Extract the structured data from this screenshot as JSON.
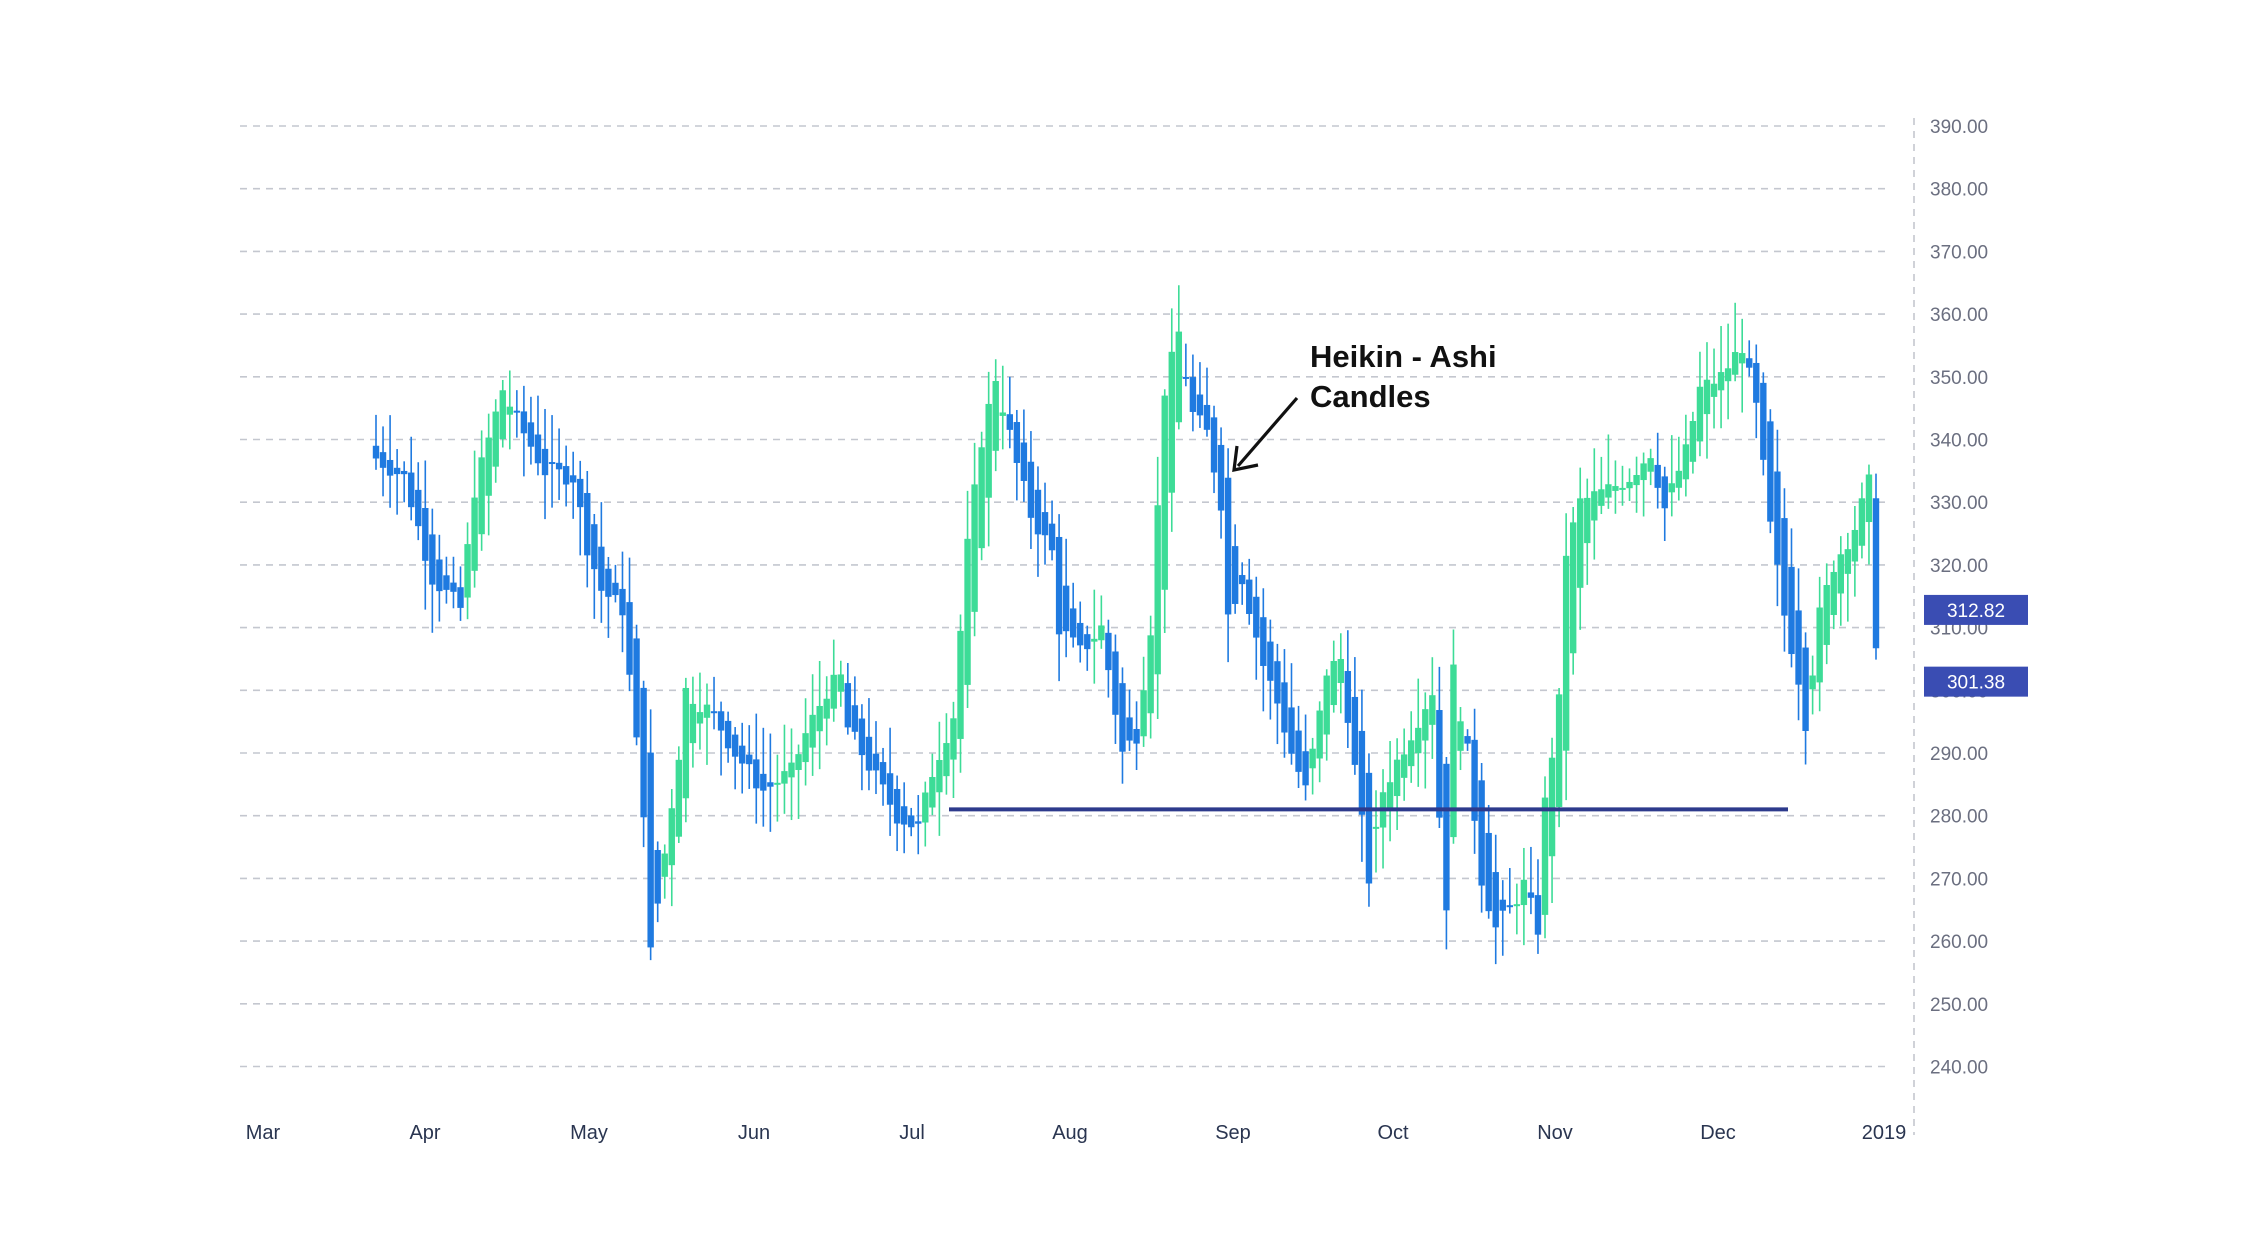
{
  "chart_data": {
    "type": "candlestick",
    "subtype": "heikin-ashi",
    "title": "",
    "xlabel": "",
    "ylabel": "",
    "ylim": [
      232,
      393
    ],
    "y_ticks": [
      "390.00",
      "380.00",
      "370.00",
      "360.00",
      "350.00",
      "340.00",
      "330.00",
      "320.00",
      "310.00",
      "300.00",
      "290.00",
      "280.00",
      "270.00",
      "260.00",
      "250.00",
      "240.00"
    ],
    "x_ticks": [
      "Mar",
      "Apr",
      "May",
      "Jun",
      "Jul",
      "Aug",
      "Sep",
      "Oct",
      "Nov",
      "Dec",
      "2019"
    ],
    "grid": true,
    "price_tags": [
      "312.82",
      "301.38"
    ],
    "support_level": 281,
    "annotation": {
      "line1": "Heikin - Ashi",
      "line2": "Candles"
    },
    "colors": {
      "up": "#3ddc97",
      "down": "#1f7ae0",
      "support": "#2d3a8c",
      "tag": "#3a4db3",
      "grid": "#c4c7cf"
    },
    "anchors": [
      [
        0,
        337
      ],
      [
        4,
        334
      ],
      [
        8,
        318
      ],
      [
        12,
        313
      ],
      [
        14,
        332
      ],
      [
        18,
        348
      ],
      [
        20,
        343
      ],
      [
        24,
        335
      ],
      [
        28,
        334
      ],
      [
        30,
        323
      ],
      [
        32,
        316
      ],
      [
        35,
        313
      ],
      [
        36,
        302
      ],
      [
        38,
        281
      ],
      [
        39,
        258
      ],
      [
        41,
        274
      ],
      [
        43,
        290
      ],
      [
        44,
        300
      ],
      [
        48,
        296
      ],
      [
        51,
        290
      ],
      [
        55,
        284
      ],
      [
        59,
        287
      ],
      [
        61,
        293
      ],
      [
        64,
        300
      ],
      [
        66,
        302
      ],
      [
        67,
        294
      ],
      [
        70,
        288
      ],
      [
        73,
        282
      ],
      [
        74,
        280
      ],
      [
        77,
        278
      ],
      [
        79,
        287
      ],
      [
        82,
        296
      ],
      [
        84,
        323
      ],
      [
        86,
        340
      ],
      [
        88,
        350
      ],
      [
        91,
        336
      ],
      [
        93,
        328
      ],
      [
        96,
        322
      ],
      [
        97,
        310
      ],
      [
        100,
        306
      ],
      [
        103,
        310
      ],
      [
        106,
        290
      ],
      [
        108,
        293
      ],
      [
        110,
        310
      ],
      [
        112,
        348
      ],
      [
        114,
        357
      ],
      [
        116,
        344
      ],
      [
        118,
        341
      ],
      [
        120,
        330
      ],
      [
        121,
        312
      ],
      [
        123,
        318
      ],
      [
        126,
        304
      ],
      [
        128,
        298
      ],
      [
        130,
        290
      ],
      [
        132,
        284
      ],
      [
        134,
        296
      ],
      [
        135,
        303
      ],
      [
        137,
        305
      ],
      [
        141,
        270
      ],
      [
        143,
        284
      ],
      [
        146,
        291
      ],
      [
        150,
        300
      ],
      [
        151,
        280
      ],
      [
        152,
        266
      ],
      [
        153,
        303
      ],
      [
        155,
        290
      ],
      [
        157,
        270
      ],
      [
        159,
        262
      ],
      [
        161,
        265
      ],
      [
        163,
        269
      ],
      [
        165,
        262
      ],
      [
        166,
        282
      ],
      [
        168,
        298
      ],
      [
        169,
        322
      ],
      [
        171,
        330
      ],
      [
        175,
        332
      ],
      [
        178,
        334
      ],
      [
        181,
        338
      ],
      [
        183,
        329
      ],
      [
        186,
        338
      ],
      [
        188,
        348
      ],
      [
        191,
        350
      ],
      [
        194,
        355
      ],
      [
        196,
        345
      ],
      [
        198,
        326
      ],
      [
        200,
        312
      ],
      [
        202,
        302
      ],
      [
        203,
        295
      ],
      [
        205,
        312
      ],
      [
        207,
        320
      ],
      [
        210,
        326
      ],
      [
        212,
        333
      ],
      [
        213,
        308
      ]
    ]
  }
}
